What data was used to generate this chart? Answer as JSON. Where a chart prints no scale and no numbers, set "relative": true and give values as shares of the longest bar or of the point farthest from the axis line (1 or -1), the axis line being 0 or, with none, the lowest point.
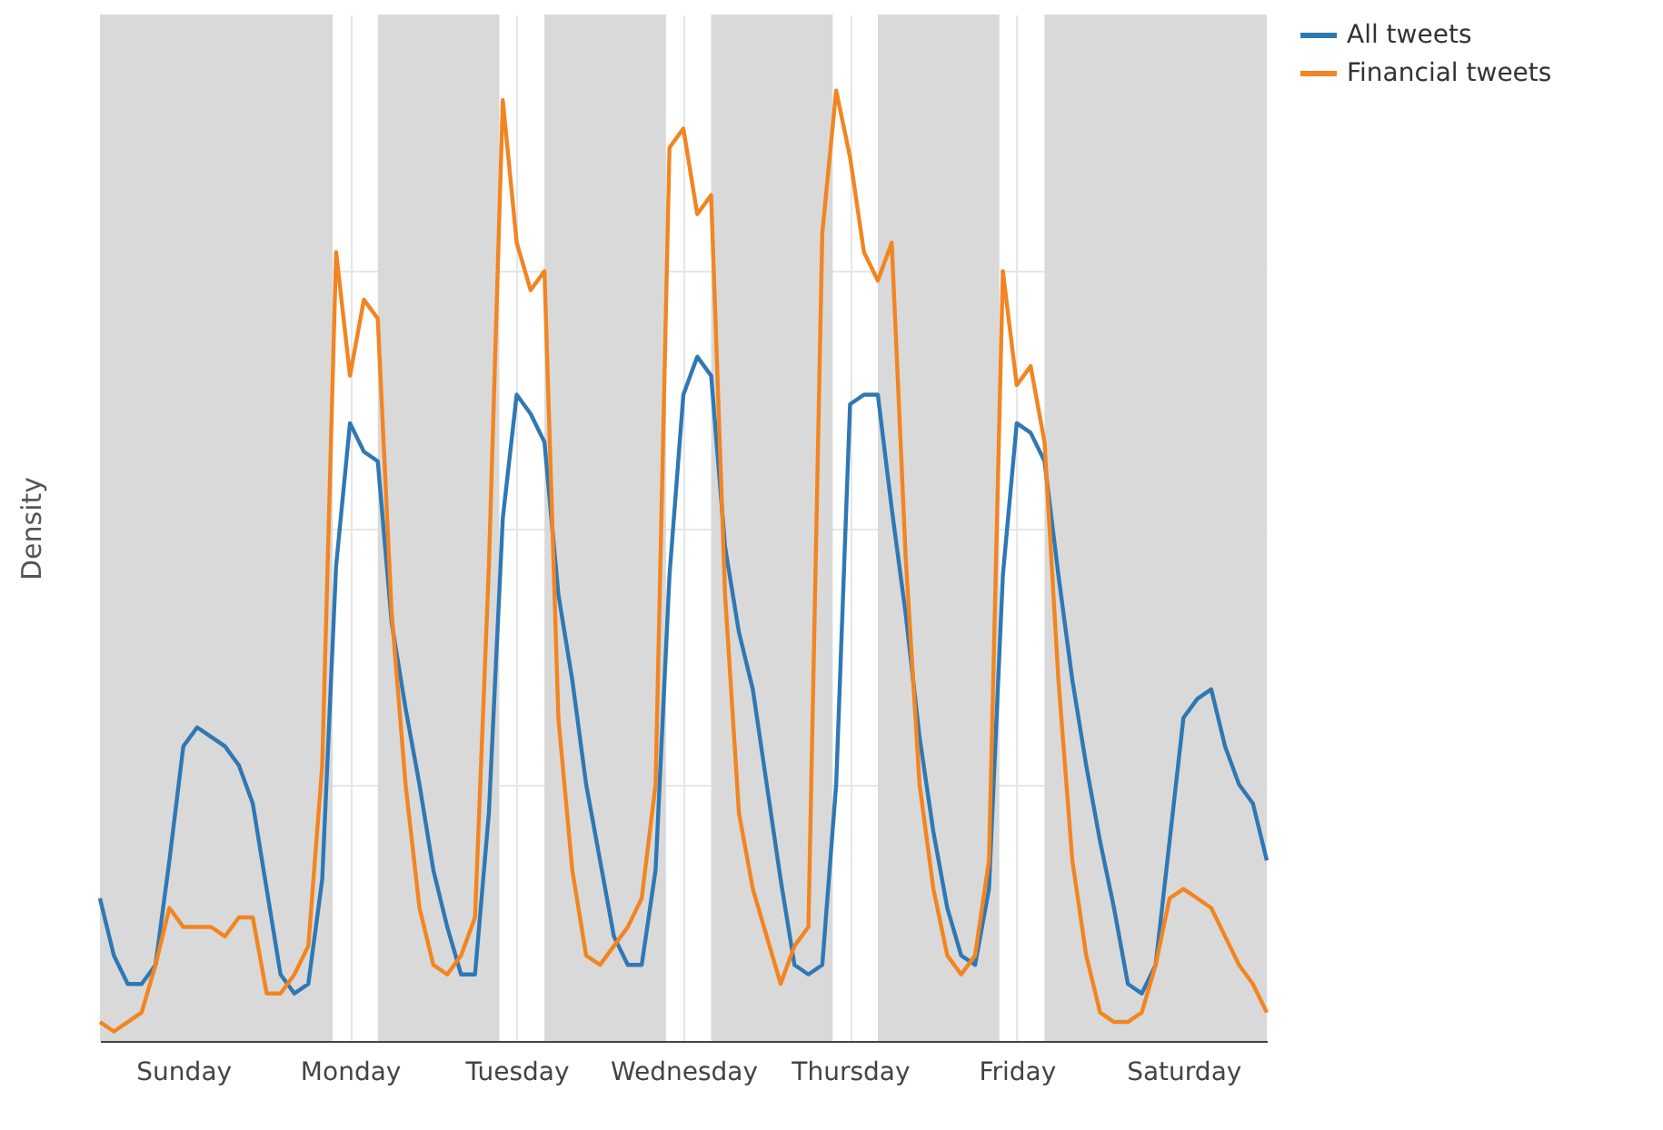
{
  "chart_data": {
    "type": "line",
    "ylabel": "Density",
    "relative": true,
    "grid": true,
    "legend": "top right",
    "line_style": "solid",
    "marker": "none",
    "categories": [
      null,
      null,
      null,
      null,
      null,
      null,
      "Sunday",
      null,
      null,
      null,
      null,
      null,
      null,
      null,
      null,
      null,
      null,
      null,
      "Monday",
      null,
      null,
      null,
      null,
      null,
      null,
      null,
      null,
      null,
      null,
      null,
      "Tuesday",
      null,
      null,
      null,
      null,
      null,
      null,
      null,
      null,
      null,
      null,
      null,
      "Wednesday",
      null,
      null,
      null,
      null,
      null,
      null,
      null,
      null,
      null,
      null,
      null,
      "Thursday",
      null,
      null,
      null,
      null,
      null,
      null,
      null,
      null,
      null,
      null,
      null,
      "Friday",
      null,
      null,
      null,
      null,
      null,
      null,
      null,
      null,
      null,
      null,
      null,
      "Saturday",
      null,
      null,
      null,
      null,
      null,
      null
    ],
    "series": [
      {
        "name": "All tweets",
        "color": "#2f78b4",
        "values": [
          0.15,
          0.09,
          0.06,
          0.06,
          0.08,
          0.19,
          0.31,
          0.33,
          0.32,
          0.31,
          0.29,
          0.25,
          0.16,
          0.07,
          0.05,
          0.06,
          0.17,
          0.5,
          0.65,
          0.62,
          0.61,
          0.44,
          0.35,
          0.27,
          0.18,
          0.12,
          0.07,
          0.07,
          0.24,
          0.55,
          0.68,
          0.66,
          0.63,
          0.47,
          0.38,
          0.27,
          0.19,
          0.11,
          0.08,
          0.08,
          0.18,
          0.49,
          0.68,
          0.72,
          0.7,
          0.52,
          0.43,
          0.37,
          0.27,
          0.17,
          0.08,
          0.07,
          0.08,
          0.27,
          0.67,
          0.68,
          0.68,
          0.56,
          0.45,
          0.32,
          0.22,
          0.14,
          0.09,
          0.08,
          0.16,
          0.49,
          0.65,
          0.64,
          0.61,
          0.49,
          0.38,
          0.29,
          0.21,
          0.14,
          0.06,
          0.05,
          0.08,
          0.21,
          0.34,
          0.36,
          0.37,
          0.31,
          0.27,
          0.25,
          0.19
        ]
      },
      {
        "name": "Financial tweets",
        "color": "#f28522",
        "values": [
          0.02,
          0.01,
          0.02,
          0.03,
          0.08,
          0.14,
          0.12,
          0.12,
          0.12,
          0.11,
          0.13,
          0.13,
          0.05,
          0.05,
          0.07,
          0.1,
          0.29,
          0.83,
          0.7,
          0.78,
          0.76,
          0.45,
          0.27,
          0.14,
          0.08,
          0.07,
          0.09,
          0.13,
          0.5,
          0.99,
          0.84,
          0.79,
          0.81,
          0.34,
          0.18,
          0.09,
          0.08,
          0.1,
          0.12,
          0.15,
          0.27,
          0.94,
          0.96,
          0.87,
          0.89,
          0.47,
          0.24,
          0.16,
          0.11,
          0.06,
          0.1,
          0.12,
          0.85,
          1.0,
          0.93,
          0.83,
          0.8,
          0.84,
          0.51,
          0.27,
          0.16,
          0.09,
          0.07,
          0.09,
          0.19,
          0.81,
          0.69,
          0.71,
          0.63,
          0.38,
          0.19,
          0.09,
          0.03,
          0.02,
          0.02,
          0.03,
          0.08,
          0.15,
          0.16,
          0.15,
          0.14,
          0.11,
          0.08,
          0.06,
          0.03
        ]
      }
    ]
  }
}
